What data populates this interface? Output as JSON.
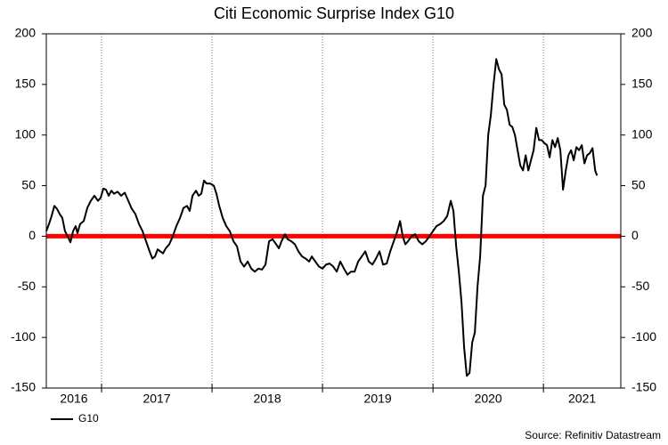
{
  "chart_data": {
    "type": "line",
    "title": "Citi Economic Surprise Index  G10",
    "source": "Source: Refinitiv Datastream",
    "x": [
      2016.5,
      2016.524,
      2016.548,
      2016.573,
      2016.597,
      2016.621,
      2016.645,
      2016.669,
      2016.694,
      2016.718,
      2016.742,
      2016.766,
      2016.782,
      2016.806,
      2016.839,
      2016.871,
      2016.903,
      2016.935,
      2016.968,
      2016.992,
      2017.016,
      2017.04,
      2017.065,
      2017.089,
      2017.113,
      2017.145,
      2017.177,
      2017.21,
      2017.242,
      2017.274,
      2017.306,
      2017.339,
      2017.371,
      2017.403,
      2017.435,
      2017.46,
      2017.484,
      2017.508,
      2017.532,
      2017.556,
      2017.581,
      2017.613,
      2017.645,
      2017.677,
      2017.71,
      2017.742,
      2017.774,
      2017.798,
      2017.823,
      2017.855,
      2017.879,
      2017.903,
      2017.927,
      2017.952,
      2017.984,
      2018.016,
      2018.04,
      2018.065,
      2018.097,
      2018.129,
      2018.161,
      2018.194,
      2018.226,
      2018.258,
      2018.29,
      2018.323,
      2018.355,
      2018.387,
      2018.419,
      2018.452,
      2018.484,
      2018.516,
      2018.548,
      2018.581,
      2018.605,
      2018.629,
      2018.661,
      2018.685,
      2018.718,
      2018.75,
      2018.782,
      2018.815,
      2018.847,
      2018.879,
      2018.903,
      2018.935,
      2018.968,
      2019.0,
      2019.032,
      2019.065,
      2019.097,
      2019.129,
      2019.161,
      2019.194,
      2019.226,
      2019.258,
      2019.29,
      2019.323,
      2019.355,
      2019.387,
      2019.419,
      2019.452,
      2019.484,
      2019.516,
      2019.548,
      2019.581,
      2019.613,
      2019.645,
      2019.677,
      2019.702,
      2019.726,
      2019.75,
      2019.774,
      2019.806,
      2019.839,
      2019.871,
      2019.903,
      2019.935,
      2019.968,
      2020.0,
      2020.032,
      2020.065,
      2020.097,
      2020.129,
      2020.161,
      2020.185,
      2020.21,
      2020.234,
      2020.258,
      2020.282,
      2020.306,
      2020.331,
      2020.355,
      2020.379,
      2020.403,
      2020.427,
      2020.452,
      2020.476,
      2020.5,
      2020.524,
      2020.548,
      2020.573,
      2020.597,
      2020.621,
      2020.645,
      2020.669,
      2020.694,
      2020.718,
      2020.742,
      2020.766,
      2020.79,
      2020.815,
      2020.839,
      2020.863,
      2020.887,
      2020.911,
      2020.935,
      2020.96,
      2020.984,
      2021.008,
      2021.032,
      2021.056,
      2021.081,
      2021.105,
      2021.129,
      2021.153,
      2021.177,
      2021.202,
      2021.226,
      2021.25,
      2021.274,
      2021.298,
      2021.323,
      2021.347,
      2021.371,
      2021.395,
      2021.419,
      2021.444,
      2021.468,
      2021.484
    ],
    "series": [
      {
        "name": "G10",
        "color": "#000000",
        "values": [
          5,
          12,
          20,
          30,
          27,
          22,
          18,
          5,
          0,
          -6,
          5,
          10,
          3,
          12,
          15,
          28,
          35,
          40,
          35,
          38,
          47,
          46,
          40,
          45,
          42,
          44,
          40,
          43,
          35,
          27,
          22,
          12,
          5,
          -5,
          -15,
          -22,
          -20,
          -13,
          -15,
          -17,
          -12,
          -8,
          0,
          10,
          18,
          28,
          30,
          25,
          40,
          45,
          40,
          42,
          55,
          52,
          52,
          50,
          42,
          30,
          18,
          10,
          5,
          -5,
          -10,
          -25,
          -30,
          -25,
          -32,
          -35,
          -32,
          -33,
          -28,
          -5,
          -3,
          -8,
          -12,
          -5,
          2,
          -3,
          -5,
          -8,
          -15,
          -20,
          -22,
          -25,
          -20,
          -25,
          -30,
          -32,
          -28,
          -27,
          -30,
          -35,
          -25,
          -32,
          -38,
          -35,
          -35,
          -25,
          -20,
          -15,
          -25,
          -28,
          -22,
          -15,
          -28,
          -27,
          -15,
          -5,
          5,
          15,
          0,
          -8,
          -5,
          0,
          2,
          -5,
          -8,
          -5,
          0,
          5,
          10,
          12,
          15,
          20,
          35,
          25,
          -10,
          -35,
          -65,
          -110,
          -138,
          -135,
          -105,
          -95,
          -50,
          -20,
          40,
          50,
          100,
          120,
          150,
          175,
          165,
          160,
          130,
          125,
          110,
          108,
          100,
          85,
          70,
          65,
          80,
          65,
          75,
          85,
          107,
          95,
          95,
          92,
          90,
          78,
          95,
          88,
          97,
          85,
          46,
          65,
          80,
          85,
          75,
          88,
          85,
          90,
          72,
          80,
          82,
          87,
          65,
          60
        ]
      }
    ],
    "xlim": [
      2016.5,
      2021.7
    ],
    "xticks": [
      2016,
      2017,
      2018,
      2019,
      2020,
      2021
    ],
    "ylim": [
      -150,
      200
    ],
    "yticks": [
      -150,
      -100,
      -50,
      0,
      50,
      100,
      150,
      200
    ],
    "reference_line": {
      "value": 0,
      "color": "#ff0000"
    },
    "grid": "x",
    "legend": "bottom-left"
  }
}
